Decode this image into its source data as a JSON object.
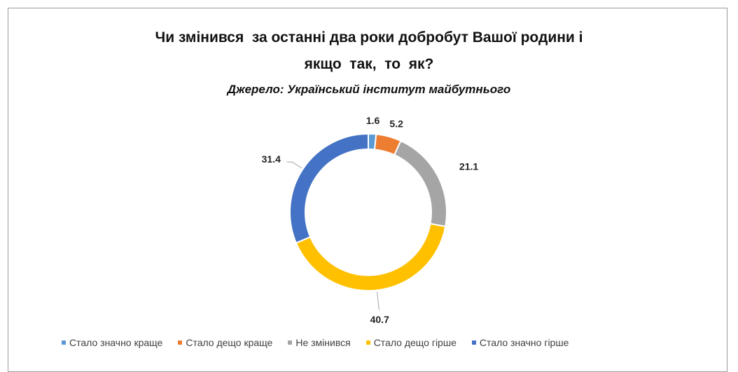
{
  "chart_data": {
    "type": "pie",
    "variant": "doughnut",
    "title_line1": "Чи змінився  за останні два роки добробут Вашої родини і",
    "title_line2": "якщо  так,  то  як?",
    "subtitle": "Джерело: Український інститут майбутнього",
    "categories": [
      "Стало значно краще",
      "Стало дещо краще",
      "Не змінився",
      "Стало дещо гірше",
      "Стало значно гірше"
    ],
    "values": [
      1.6,
      5.2,
      21.1,
      40.7,
      31.4
    ],
    "labels": [
      "1.6",
      "5.2",
      "21.1",
      "40.7",
      "31.4"
    ],
    "colors": [
      "#5b9bd5",
      "#ed7d31",
      "#a5a5a5",
      "#ffc000",
      "#4472c4"
    ],
    "legend_position": "bottom"
  }
}
